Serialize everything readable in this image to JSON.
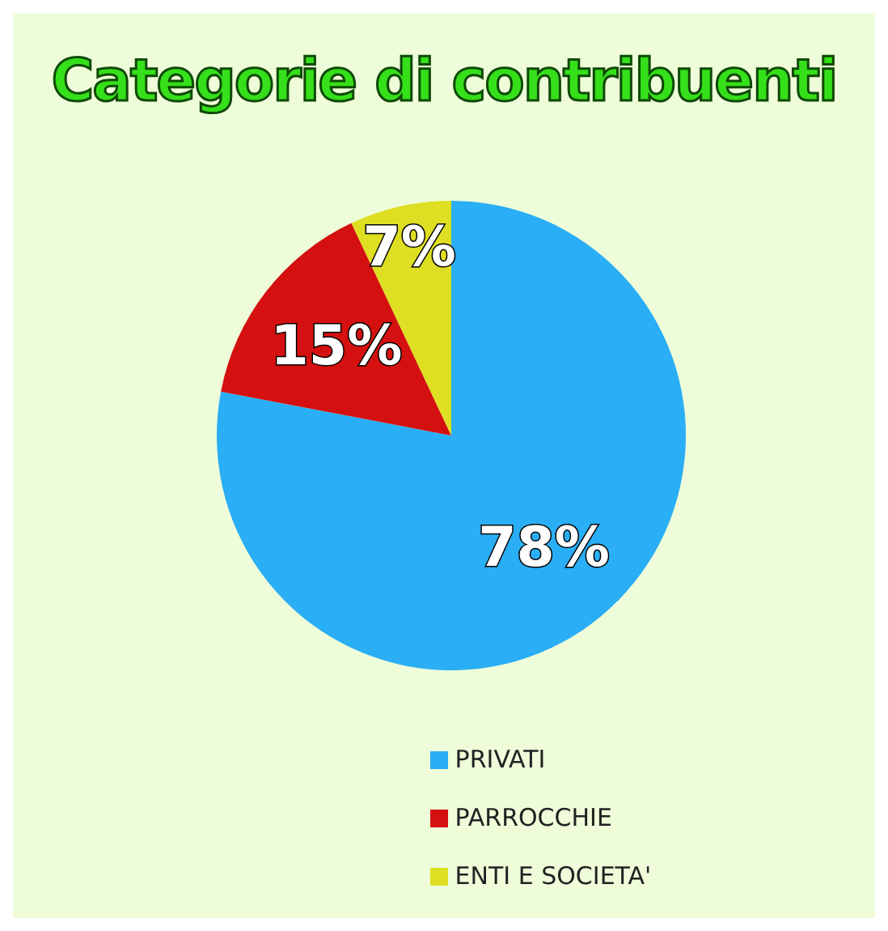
{
  "chart_data": {
    "type": "pie",
    "title": "Categorie di contribuenti",
    "categories": [
      "PRIVATI",
      "PARROCCHIE",
      "ENTI E SOCIETA'"
    ],
    "values": [
      78,
      15,
      7
    ],
    "colors": [
      "#2aaef5",
      "#d41010",
      "#dede22"
    ],
    "value_labels": [
      "78%",
      "15%",
      "7%"
    ],
    "legend": "bottom"
  }
}
